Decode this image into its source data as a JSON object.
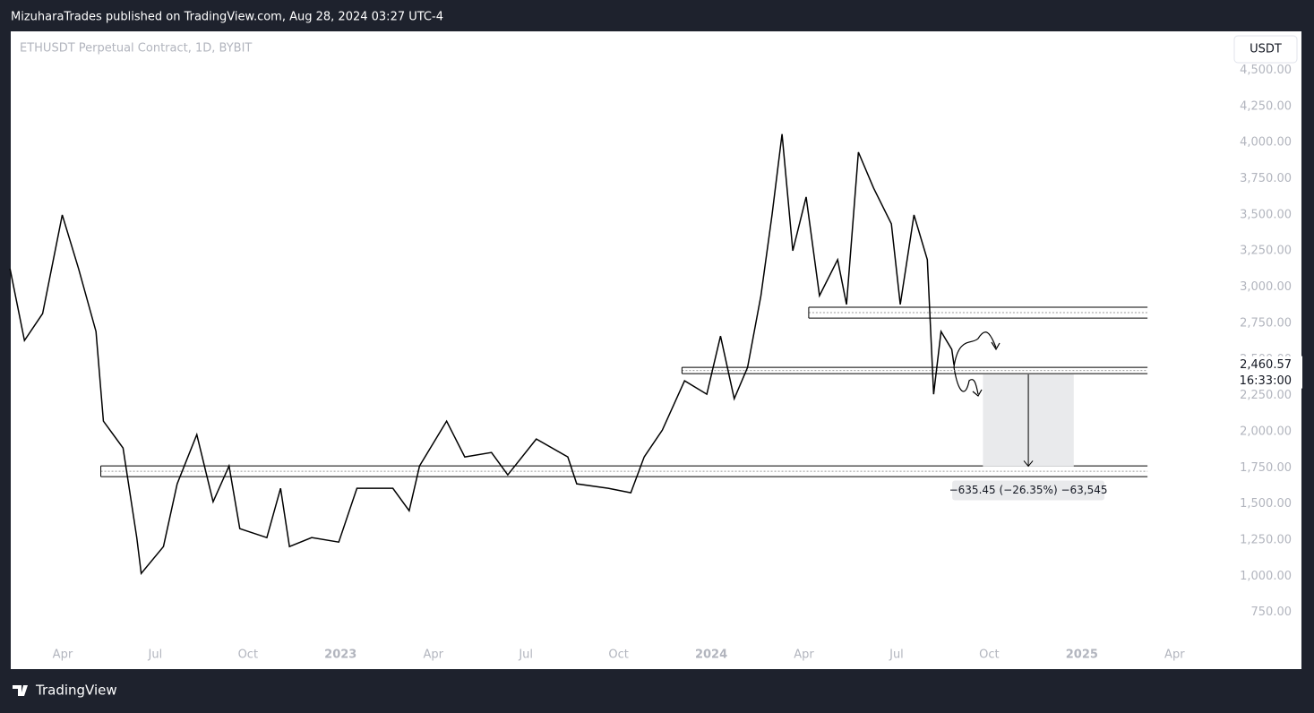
{
  "header": "MizuharaTrades published on TradingView.com, Aug 28, 2024 03:27 UTC-4",
  "footer": "TradingView",
  "chart_data": {
    "type": "line",
    "title": "ETHUSDT Perpetual Contract, 1D, BYBIT",
    "currency": "USDT",
    "color": "#000000",
    "x": [
      2022.108,
      2022.147,
      2022.196,
      2022.249,
      2022.293,
      2022.34,
      2022.36,
      2022.413,
      2022.45,
      2022.462,
      2022.522,
      2022.559,
      2022.612,
      2022.656,
      2022.699,
      2022.728,
      2022.801,
      2022.838,
      2022.862,
      2022.922,
      2022.995,
      2023.044,
      2023.141,
      2023.185,
      2023.213,
      2023.286,
      2023.335,
      2023.407,
      2023.451,
      2023.528,
      2023.613,
      2023.637,
      2023.722,
      2023.783,
      2023.819,
      2023.868,
      2023.928,
      2023.988,
      2024.025,
      2024.062,
      2024.098,
      2024.134,
      2024.164,
      2024.191,
      2024.22,
      2024.256,
      2024.292,
      2024.341,
      2024.365,
      2024.397,
      2024.438,
      2024.486,
      2024.51,
      2024.547,
      2024.583,
      2024.6,
      2024.62,
      2024.649,
      2024.655
    ],
    "values": [
      3128,
      2631,
      2817,
      3500,
      3128,
      2693,
      2073,
      1887,
      1267,
      1019,
      1205,
      1639,
      1980,
      1515,
      1763,
      1329,
      1267,
      1608,
      1205,
      1267,
      1236,
      1608,
      1608,
      1453,
      1763,
      2073,
      1825,
      1856,
      1701,
      1949,
      1825,
      1639,
      1608,
      1577,
      1825,
      2011,
      2352,
      2259,
      2662,
      2228,
      2445,
      2941,
      3500,
      4059,
      3252,
      3624,
      2941,
      3190,
      2880,
      3934,
      3686,
      3438,
      2880,
      3500,
      3190,
      2259,
      2693,
      2569,
      2460.57
    ],
    "xlim": [
      2022.11,
      2025.59
    ],
    "ylim": [
      574,
      4770
    ],
    "xticks": [
      {
        "value": 2022.25,
        "label": "Apr"
      },
      {
        "value": 2022.5,
        "label": "Jul"
      },
      {
        "value": 2022.75,
        "label": "Oct"
      },
      2023,
      {
        "value": 2023.25,
        "label": "Apr"
      },
      {
        "value": 2023.5,
        "label": "Jul"
      },
      {
        "value": 2023.75,
        "label": "Oct"
      },
      2024,
      {
        "value": 2024.25,
        "label": "Apr"
      },
      {
        "value": 2024.5,
        "label": "Jul"
      },
      {
        "value": 2024.75,
        "label": "Oct"
      },
      2025,
      {
        "value": 2025.25,
        "label": "Apr"
      }
    ],
    "yticks": [
      {
        "value": 750,
        "label": "750.00"
      },
      {
        "value": 1000,
        "label": "1,000.00"
      },
      {
        "value": 1250,
        "label": "1,250.00"
      },
      {
        "value": 1500,
        "label": "1,500.00"
      },
      {
        "value": 1750,
        "label": "1,750.00"
      },
      {
        "value": 2000,
        "label": "2,000.00"
      },
      {
        "value": 2250,
        "label": "2,250.00"
      },
      {
        "value": 2500,
        "label": "2,500.00"
      },
      {
        "value": 2750,
        "label": "2,750.00"
      },
      {
        "value": 3000,
        "label": "3,000.00"
      },
      {
        "value": 3250,
        "label": "3,250.00"
      },
      {
        "value": 3500,
        "label": "3,500.00"
      },
      {
        "value": 3750,
        "label": "3,750.00"
      },
      {
        "value": 4000,
        "label": "4,000.00"
      },
      {
        "value": 4250,
        "label": "4,250.00"
      },
      {
        "value": 4500,
        "label": "4,500.00"
      }
    ],
    "last_price": {
      "value": 2460.57,
      "label": "2,460.57"
    },
    "countdown": "16:33:00",
    "zones": [
      {
        "x": [
          2024.263,
          2025.177
        ],
        "prices": [
          2861,
          2786
        ]
      },
      {
        "x": [
          2023.921,
          2025.177
        ],
        "prices": [
          2445,
          2402
        ]
      },
      {
        "x": [
          2022.353,
          2025.177
        ],
        "prices": [
          1763,
          1689
        ]
      }
    ],
    "measure": {
      "x": [
        2024.733,
        2024.978
      ],
      "prices": [
        2396,
        1761
      ],
      "label": "−635.45 (−26.35%) −63,545"
    }
  }
}
